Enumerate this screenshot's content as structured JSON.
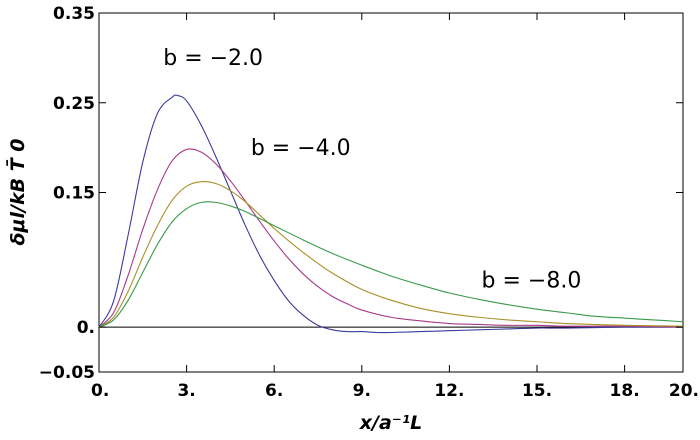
{
  "chart_data": {
    "type": "line",
    "title": "",
    "xlabel": "x/a⁻¹L",
    "ylabel": "δμl/kB T̄ 0",
    "xlim": [
      0,
      20
    ],
    "ylim": [
      -0.05,
      0.35
    ],
    "x_ticks": [
      {
        "value": 0,
        "label": "0."
      },
      {
        "value": 3,
        "label": "3."
      },
      {
        "value": 6,
        "label": "6."
      },
      {
        "value": 9,
        "label": "9."
      },
      {
        "value": 12,
        "label": "12."
      },
      {
        "value": 15,
        "label": "15."
      },
      {
        "value": 18,
        "label": "18."
      },
      {
        "value": 20,
        "label": "20."
      }
    ],
    "y_ticks": [
      {
        "value": -0.05,
        "label": "−0.05"
      },
      {
        "value": 0,
        "label": "0."
      },
      {
        "value": 0.15,
        "label": "0.15"
      },
      {
        "value": 0.25,
        "label": "0.25"
      },
      {
        "value": 0.35,
        "label": "0.35"
      }
    ],
    "grid": false,
    "series": [
      {
        "color": "#3b3b9b",
        "x": [
          0,
          0.5,
          1,
          1.5,
          2,
          2.5,
          2.7,
          3,
          3.5,
          4,
          4.5,
          5,
          5.5,
          6,
          6.5,
          7,
          7.5,
          8,
          8.5,
          9,
          9.5,
          10,
          11,
          12,
          13,
          14,
          15,
          16,
          18,
          20
        ],
        "y": [
          0,
          0.029,
          0.103,
          0.184,
          0.238,
          0.256,
          0.258,
          0.252,
          0.225,
          0.19,
          0.152,
          0.114,
          0.08,
          0.052,
          0.029,
          0.013,
          0.002,
          -0.003,
          -0.005,
          -0.005,
          -0.006,
          -0.006,
          -0.005,
          -0.004,
          -0.003,
          -0.002,
          -0.001,
          -0.001,
          0,
          0
        ]
      },
      {
        "color": "#a83a8a",
        "x": [
          0,
          0.5,
          1,
          1.5,
          2,
          2.5,
          3,
          3.5,
          4,
          4.5,
          5,
          5.5,
          6,
          6.5,
          7,
          7.5,
          8,
          8.5,
          9,
          10,
          11,
          12,
          13,
          14,
          15,
          16,
          18,
          20
        ],
        "y": [
          0,
          0.016,
          0.058,
          0.109,
          0.153,
          0.185,
          0.198,
          0.195,
          0.182,
          0.163,
          0.141,
          0.118,
          0.096,
          0.076,
          0.059,
          0.045,
          0.034,
          0.026,
          0.019,
          0.011,
          0.007,
          0.004,
          0.003,
          0.002,
          0.002,
          0.001,
          0.001,
          0
        ]
      },
      {
        "color": "#a8902a",
        "x": [
          0,
          0.5,
          1,
          1.5,
          2,
          2.5,
          3,
          3.5,
          4,
          4.5,
          5,
          5.5,
          6,
          6.5,
          7,
          7.5,
          8,
          9,
          10,
          11,
          12,
          13,
          14,
          15,
          16,
          18,
          20
        ],
        "y": [
          0,
          0.011,
          0.04,
          0.078,
          0.113,
          0.141,
          0.157,
          0.162,
          0.16,
          0.152,
          0.14,
          0.125,
          0.11,
          0.096,
          0.083,
          0.071,
          0.06,
          0.042,
          0.03,
          0.021,
          0.015,
          0.011,
          0.008,
          0.006,
          0.004,
          0.002,
          0.001
        ]
      },
      {
        "color": "#3a9a4a",
        "x": [
          0,
          0.5,
          1,
          1.5,
          2,
          2.5,
          3,
          3.5,
          4,
          4.5,
          5,
          5.5,
          6,
          7,
          8,
          9,
          10,
          11,
          12,
          13,
          14,
          15,
          16,
          17,
          18,
          19,
          20
        ],
        "y": [
          0,
          0.008,
          0.03,
          0.061,
          0.092,
          0.117,
          0.132,
          0.139,
          0.139,
          0.135,
          0.129,
          0.121,
          0.113,
          0.097,
          0.082,
          0.069,
          0.057,
          0.047,
          0.038,
          0.031,
          0.025,
          0.02,
          0.016,
          0.012,
          0.01,
          0.008,
          0.006
        ]
      }
    ],
    "annotations": [
      {
        "text": "b = −2.0",
        "x": 2.2,
        "y": 0.292
      },
      {
        "text": "b = −4.0",
        "x": 5.2,
        "y": 0.192
      },
      {
        "text": "b = −8.0",
        "x": 13.1,
        "y": 0.044
      }
    ]
  }
}
